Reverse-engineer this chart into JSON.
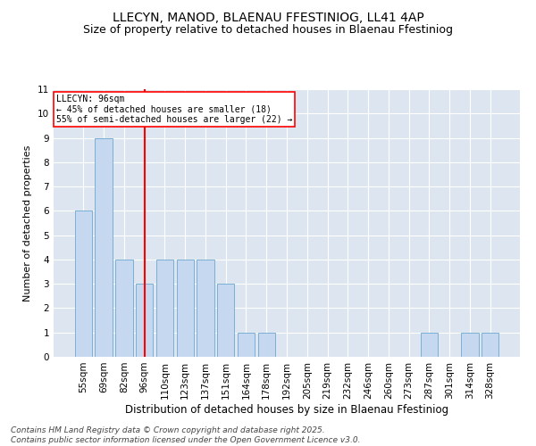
{
  "title1": "LLECYN, MANOD, BLAENAU FFESTINIOG, LL41 4AP",
  "title2": "Size of property relative to detached houses in Blaenau Ffestiniog",
  "xlabel": "Distribution of detached houses by size in Blaenau Ffestiniog",
  "ylabel": "Number of detached properties",
  "categories": [
    "55sqm",
    "69sqm",
    "82sqm",
    "96sqm",
    "110sqm",
    "123sqm",
    "137sqm",
    "151sqm",
    "164sqm",
    "178sqm",
    "192sqm",
    "205sqm",
    "219sqm",
    "232sqm",
    "246sqm",
    "260sqm",
    "273sqm",
    "287sqm",
    "301sqm",
    "314sqm",
    "328sqm"
  ],
  "values": [
    6,
    9,
    4,
    3,
    4,
    4,
    4,
    3,
    1,
    1,
    0,
    0,
    0,
    0,
    0,
    0,
    0,
    1,
    0,
    1,
    1
  ],
  "bar_color": "#c5d8f0",
  "bar_edge_color": "#7aafd4",
  "vline_x": 3,
  "vline_color": "red",
  "annotation_title": "LLECYN: 96sqm",
  "annotation_line1": "← 45% of detached houses are smaller (18)",
  "annotation_line2": "55% of semi-detached houses are larger (22) →",
  "annotation_box_color": "red",
  "ylim": [
    0,
    11
  ],
  "yticks": [
    0,
    1,
    2,
    3,
    4,
    5,
    6,
    7,
    8,
    9,
    10,
    11
  ],
  "background_color": "#dde6f0",
  "footer": "Contains HM Land Registry data © Crown copyright and database right 2025.\nContains public sector information licensed under the Open Government Licence v3.0.",
  "title1_fontsize": 10,
  "title2_fontsize": 9,
  "xlabel_fontsize": 8.5,
  "ylabel_fontsize": 8,
  "tick_fontsize": 7.5,
  "footer_fontsize": 6.5
}
